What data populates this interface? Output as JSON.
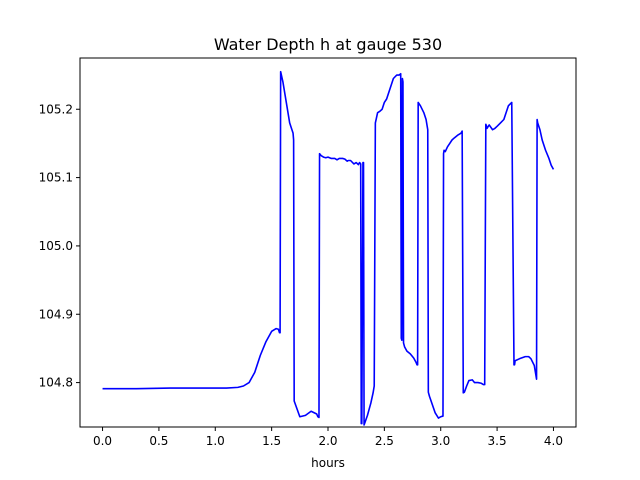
{
  "chart_data": {
    "type": "line",
    "title": "Water Depth h at gauge 530",
    "xlabel": "hours",
    "ylabel": "",
    "xlim": [
      -0.2,
      4.2
    ],
    "ylim": [
      104.735,
      105.275
    ],
    "xticks": [
      0.0,
      0.5,
      1.0,
      1.5,
      2.0,
      2.5,
      3.0,
      3.5,
      4.0
    ],
    "xtick_labels": [
      "0.0",
      "0.5",
      "1.0",
      "1.5",
      "2.0",
      "2.5",
      "3.0",
      "3.5",
      "4.0"
    ],
    "yticks": [
      104.8,
      104.9,
      105.0,
      105.1,
      105.2
    ],
    "ytick_labels": [
      "104.8",
      "104.9",
      "105.0",
      "105.1",
      "105.2"
    ],
    "grid": false,
    "series": [
      {
        "color": "#0000ff",
        "x": [
          0.0,
          0.3,
          0.6,
          0.9,
          1.1,
          1.2,
          1.25,
          1.3,
          1.35,
          1.4,
          1.45,
          1.5,
          1.54,
          1.56,
          1.57,
          1.575,
          1.58,
          1.6,
          1.63,
          1.66,
          1.69,
          1.695,
          1.7,
          1.75,
          1.8,
          1.85,
          1.9,
          1.91,
          1.92,
          1.925,
          1.94,
          1.96,
          1.98,
          2.0,
          2.03,
          2.06,
          2.08,
          2.1,
          2.13,
          2.15,
          2.17,
          2.18,
          2.2,
          2.23,
          2.25,
          2.27,
          2.28,
          2.29,
          2.295,
          2.3,
          2.31,
          2.315,
          2.32,
          2.35,
          2.38,
          2.4,
          2.41,
          2.42,
          2.44,
          2.46,
          2.48,
          2.5,
          2.52,
          2.55,
          2.58,
          2.61,
          2.63,
          2.645,
          2.65,
          2.655,
          2.66,
          2.665,
          2.67,
          2.68,
          2.7,
          2.73,
          2.76,
          2.78,
          2.79,
          2.795,
          2.8,
          2.82,
          2.85,
          2.87,
          2.88,
          2.885,
          2.89,
          2.9,
          2.95,
          2.98,
          3.0,
          3.02,
          3.025,
          3.03,
          3.04,
          3.06,
          3.08,
          3.1,
          3.12,
          3.15,
          3.18,
          3.19,
          3.2,
          3.21,
          3.23,
          3.25,
          3.28,
          3.3,
          3.33,
          3.36,
          3.38,
          3.39,
          3.4,
          3.405,
          3.41,
          3.43,
          3.46,
          3.48,
          3.5,
          3.53,
          3.56,
          3.58,
          3.6,
          3.63,
          3.65,
          3.655,
          3.66,
          3.7,
          3.75,
          3.78,
          3.8,
          3.83,
          3.85,
          3.855,
          3.86,
          3.88,
          3.9,
          3.93,
          3.96,
          3.98,
          4.0
        ],
        "y": [
          104.791,
          104.791,
          104.792,
          104.792,
          104.792,
          104.793,
          104.795,
          104.8,
          104.815,
          104.84,
          104.86,
          104.875,
          104.879,
          104.878,
          104.873,
          104.873,
          105.255,
          105.24,
          105.21,
          105.18,
          105.165,
          105.155,
          104.773,
          104.75,
          104.752,
          104.758,
          104.754,
          104.75,
          104.749,
          105.135,
          105.132,
          105.13,
          105.129,
          105.13,
          105.128,
          105.128,
          105.126,
          105.128,
          105.128,
          105.127,
          105.124,
          105.125,
          105.125,
          105.12,
          105.122,
          105.119,
          105.122,
          105.12,
          104.74,
          104.74,
          105.122,
          105.122,
          104.738,
          104.752,
          104.77,
          104.785,
          104.795,
          105.18,
          105.195,
          105.197,
          105.2,
          105.21,
          105.215,
          105.23,
          105.245,
          105.25,
          105.25,
          105.252,
          104.865,
          104.862,
          105.245,
          105.24,
          104.858,
          104.852,
          104.846,
          104.842,
          104.836,
          104.83,
          104.826,
          104.826,
          105.21,
          105.205,
          105.195,
          105.185,
          105.175,
          105.17,
          104.786,
          104.78,
          104.756,
          104.748,
          104.75,
          104.751,
          105.135,
          105.14,
          105.138,
          105.145,
          105.15,
          105.155,
          105.158,
          105.162,
          105.165,
          105.168,
          104.785,
          104.786,
          104.795,
          104.803,
          104.804,
          104.8,
          104.8,
          104.799,
          104.797,
          104.797,
          105.178,
          105.176,
          105.172,
          105.177,
          105.17,
          105.172,
          105.175,
          105.18,
          105.185,
          105.195,
          105.205,
          105.21,
          104.826,
          104.826,
          104.832,
          104.835,
          104.838,
          104.838,
          104.835,
          104.825,
          104.805,
          105.185,
          105.18,
          105.17,
          105.155,
          105.14,
          105.128,
          105.118,
          105.112
        ]
      }
    ]
  }
}
